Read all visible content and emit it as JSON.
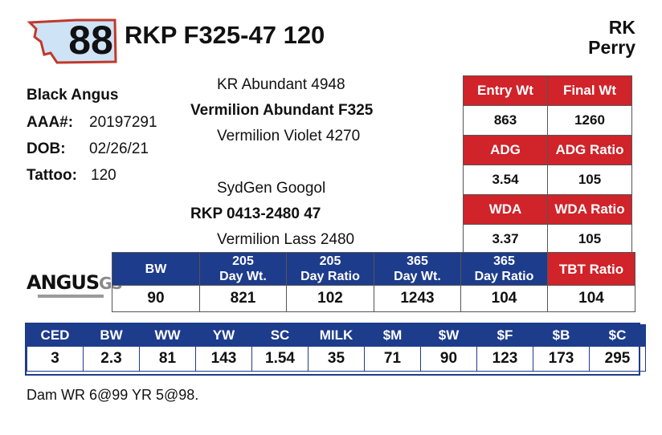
{
  "lot_number": "88",
  "animal_name": "RKP F325-47 120",
  "consignor": {
    "line1": "RK",
    "line2": "Perry"
  },
  "info": {
    "breed": "Black Angus",
    "reg_label": "AAA#:",
    "reg_value": "20197291",
    "dob_label": "DOB:",
    "dob_value": "02/26/21",
    "tattoo_label": "Tattoo:",
    "tattoo_value": "120"
  },
  "pedigree": {
    "sire_sire": "KR Abundant 4948",
    "sire": "Vermilion Abundant F325",
    "sire_dam": "Vermilion Violet 4270",
    "dam_sire": "SydGen Googol",
    "dam": "RKP 0413-2480 47",
    "dam_dam": "Vermilion Lass 2480"
  },
  "performance": {
    "headers_row1": [
      "Entry Wt",
      "Final Wt"
    ],
    "values_row1": [
      "863",
      "1260"
    ],
    "headers_row2": [
      "ADG",
      "ADG Ratio"
    ],
    "values_row2": [
      "3.54",
      "105"
    ],
    "headers_row3": [
      "WDA",
      "WDA Ratio"
    ],
    "values_row3": [
      "3.37",
      "105"
    ]
  },
  "ratios": {
    "headers": [
      {
        "l1": "BW",
        "l2": ""
      },
      {
        "l1": "205",
        "l2": "Day Wt."
      },
      {
        "l1": "205",
        "l2": "Day Ratio"
      },
      {
        "l1": "365",
        "l2": "Day Wt."
      },
      {
        "l1": "365",
        "l2": "Day Ratio"
      },
      {
        "l1": "TBT Ratio",
        "l2": ""
      }
    ],
    "values": [
      "90",
      "821",
      "102",
      "1243",
      "104",
      "104"
    ]
  },
  "epd": {
    "headers": [
      "CED",
      "BW",
      "WW",
      "YW",
      "SC",
      "MILK",
      "$M",
      "$W",
      "$F",
      "$B",
      "$C"
    ],
    "values": [
      "3",
      "2.3",
      "81",
      "143",
      "1.54",
      "35",
      "71",
      "90",
      "123",
      "173",
      "295"
    ]
  },
  "logo": {
    "main": "ANGUS",
    "suffix": "GS"
  },
  "footnote": "Dam WR 6@99 YR 5@98.",
  "colors": {
    "red": "#d0232a",
    "blue": "#1e3c8c",
    "badge_outline": "#c0392b",
    "badge_fill": "#cfe3f7"
  }
}
